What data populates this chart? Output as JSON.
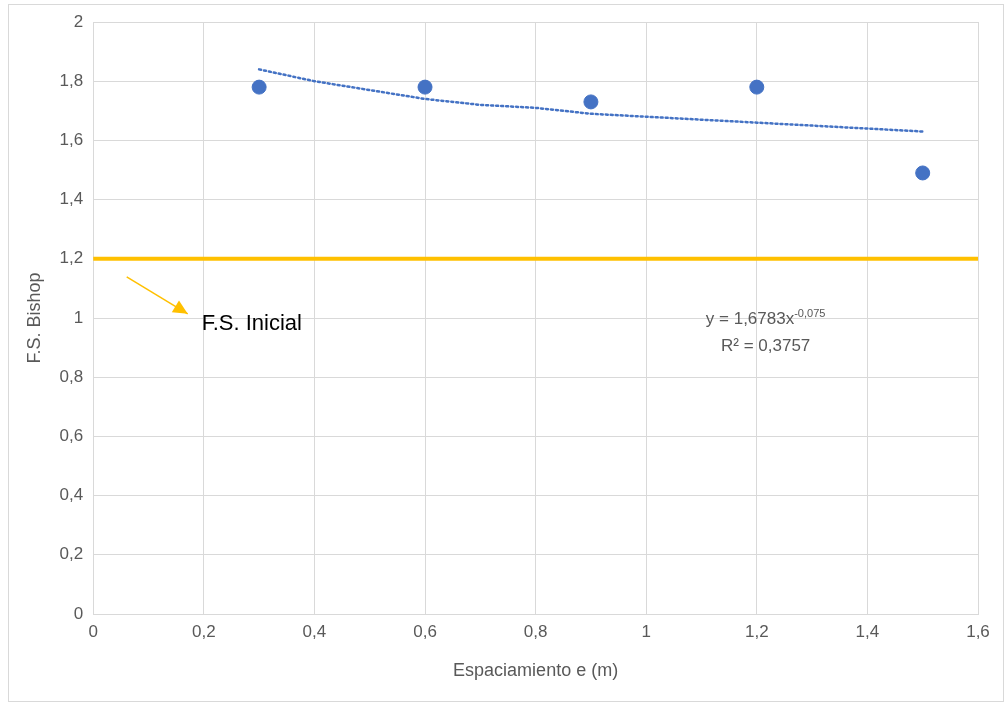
{
  "chart_data": {
    "type": "scatter",
    "xlabel": "Espaciamiento e (m)",
    "ylabel": "F.S. Bishop",
    "xlim": [
      0,
      1.6
    ],
    "ylim": [
      0,
      2
    ],
    "xticks": [
      0,
      {
        "value": 0.2,
        "label": "0,2"
      },
      {
        "value": 0.4,
        "label": "0,4"
      },
      {
        "value": 0.6,
        "label": "0,6"
      },
      {
        "value": 0.8,
        "label": "0,8"
      },
      1,
      {
        "value": 1.2,
        "label": "1,2"
      },
      {
        "value": 1.4,
        "label": "1,4"
      },
      {
        "value": 1.6,
        "label": "1,6"
      }
    ],
    "yticks": [
      0,
      {
        "value": 0.2,
        "label": "0,2"
      },
      {
        "value": 0.4,
        "label": "0,4"
      },
      {
        "value": 0.6,
        "label": "0,6"
      },
      {
        "value": 0.8,
        "label": "0,8"
      },
      1,
      {
        "value": 1.2,
        "label": "1,2"
      },
      {
        "value": 1.4,
        "label": "1,4"
      },
      {
        "value": 1.6,
        "label": "1,6"
      },
      {
        "value": 1.8,
        "label": "1,8"
      },
      2
    ],
    "grid": true,
    "series": [
      {
        "color": "#4472c4",
        "marker": "circle",
        "x": [
          0.3,
          0.6,
          0.9,
          1.2,
          1.5
        ],
        "values": [
          1.78,
          1.78,
          1.73,
          1.78,
          1.49
        ]
      },
      {
        "type": "line",
        "color": "#4472c4",
        "marker": "none",
        "line_style": "dotted",
        "x": [
          0.3,
          0.4,
          0.5,
          0.6,
          0.7,
          0.8,
          0.9,
          1.0,
          1.1,
          1.2,
          1.3,
          1.4,
          1.5
        ],
        "values": [
          1.84,
          1.8,
          1.77,
          1.74,
          1.72,
          1.71,
          1.69,
          1.68,
          1.67,
          1.66,
          1.65,
          1.64,
          1.63
        ]
      }
    ],
    "ref_lines": [
      {
        "axis": "y",
        "value": 1.2,
        "label": "F.S. Inicial",
        "color": "#ffc000"
      }
    ],
    "annotations": [
      "y = 1,6783x$^{-0,075}$",
      "R² = 0,3757"
    ]
  }
}
